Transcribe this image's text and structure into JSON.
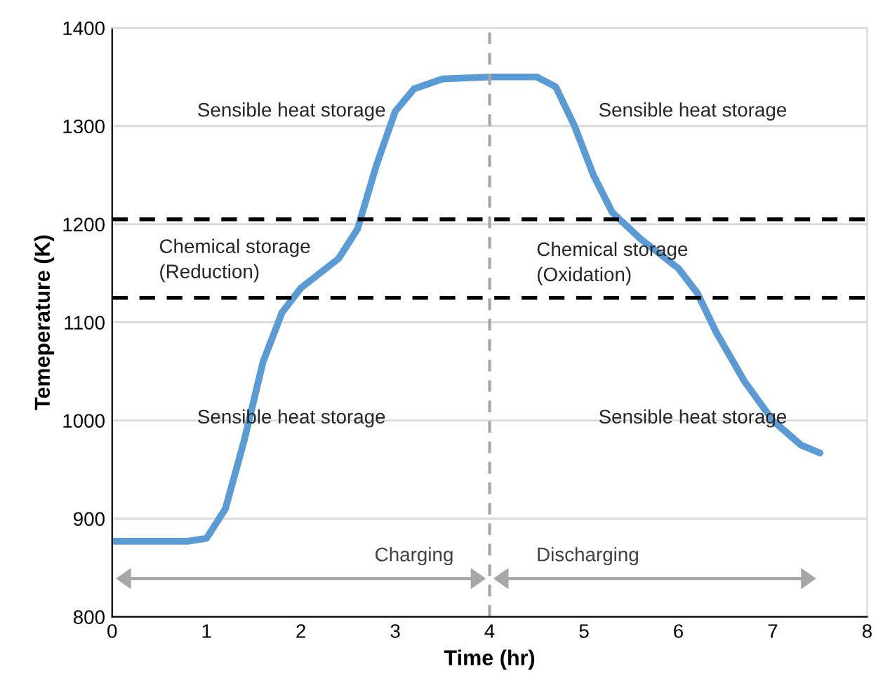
{
  "chart_data": {
    "type": "line",
    "xlabel": "Time (hr)",
    "ylabel": "Temeperature (K)",
    "x": [
      0,
      0.8,
      1.0,
      1.2,
      1.4,
      1.6,
      1.8,
      2.0,
      2.2,
      2.4,
      2.6,
      2.8,
      3.0,
      3.2,
      3.5,
      4.0,
      4.5,
      4.7,
      4.9,
      5.1,
      5.3,
      5.6,
      6.0,
      6.2,
      6.4,
      6.7,
      7.0,
      7.3,
      7.5
    ],
    "series": [
      {
        "color": "#5b9bd5",
        "values": [
          877,
          877,
          880,
          910,
          980,
          1060,
          1110,
          1135,
          1150,
          1165,
          1195,
          1260,
          1315,
          1338,
          1348,
          1350,
          1350,
          1340,
          1300,
          1250,
          1212,
          1185,
          1155,
          1130,
          1090,
          1040,
          1000,
          975,
          967
        ]
      }
    ],
    "xlim": [
      0,
      8
    ],
    "xticks": [
      0,
      1,
      2,
      3,
      4,
      5,
      6,
      7,
      8
    ],
    "ylim": [
      800,
      1400
    ],
    "yticks": [
      800,
      900,
      1000,
      1100,
      1200,
      1300,
      1400
    ],
    "grid": "y",
    "marker": "none",
    "line_style": "solid",
    "ref_lines": [
      {
        "axis": "y",
        "value": 1205,
        "color": "#000000",
        "line_style": "dashed"
      },
      {
        "axis": "y",
        "value": 1125,
        "color": "#000000",
        "line_style": "dashed"
      },
      {
        "axis": "x",
        "value": 4,
        "color": "#a6a6a6",
        "line_style": "dashed"
      }
    ],
    "annotations": [
      "Sensible heat storage",
      "Chemical storage\n(Reduction)",
      "Sensible heat storage",
      "Chemical storage\n(Oxidation)",
      "Sensible heat storage",
      "Sensible heat storage",
      "Charging",
      "Discharging"
    ]
  }
}
